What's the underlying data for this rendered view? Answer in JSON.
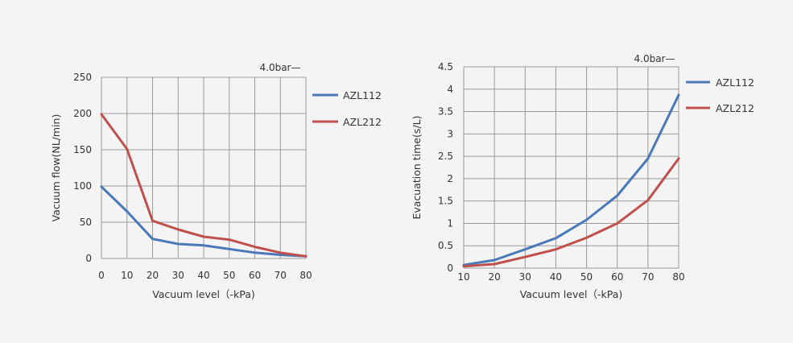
{
  "chart_data": [
    {
      "type": "line",
      "annotation": "4.0bar—",
      "xlabel": "Vacuum level（-kPa)",
      "ylabel": "Vacuum flow(NL/min)",
      "x": [
        0,
        10,
        20,
        30,
        40,
        50,
        60,
        70,
        80
      ],
      "xlim": [
        0,
        80
      ],
      "ylim": [
        0,
        250
      ],
      "x_ticks": [
        "0",
        "10",
        "20",
        "30",
        "40",
        "50",
        "60",
        "70",
        "80"
      ],
      "y_ticks": [
        "0",
        "50",
        "100",
        "150",
        "200",
        "250"
      ],
      "grid": true,
      "legend_position": "right",
      "series": [
        {
          "name": "AZL112",
          "color": "#4a78b8",
          "values": [
            99,
            65,
            27,
            20,
            18,
            13,
            8,
            5,
            3
          ]
        },
        {
          "name": "AZL212",
          "color": "#c0504d",
          "values": [
            199,
            151,
            52,
            40,
            30,
            26,
            16,
            8,
            3
          ]
        }
      ]
    },
    {
      "type": "line",
      "annotation": "4.0bar—",
      "xlabel": "Vacuum level（-kPa)",
      "ylabel": "Evacuation time(s/L)",
      "x": [
        10,
        20,
        30,
        40,
        50,
        60,
        70,
        80
      ],
      "xlim": [
        10,
        80
      ],
      "ylim": [
        0,
        4.5
      ],
      "x_ticks": [
        "10",
        "20",
        "30",
        "40",
        "50",
        "60",
        "70",
        "80"
      ],
      "y_ticks": [
        "0",
        "0.5",
        "1",
        "1.5",
        "2",
        "2.5",
        "3",
        "3.5",
        "4",
        "4.5"
      ],
      "grid": true,
      "legend_position": "right",
      "series": [
        {
          "name": "AZL112",
          "color": "#4a78b8",
          "values": [
            0.07,
            0.18,
            0.42,
            0.67,
            1.08,
            1.62,
            2.45,
            3.87
          ]
        },
        {
          "name": "AZL212",
          "color": "#c0504d",
          "values": [
            0.04,
            0.09,
            0.25,
            0.42,
            0.68,
            1.0,
            1.52,
            2.45
          ]
        }
      ]
    }
  ]
}
